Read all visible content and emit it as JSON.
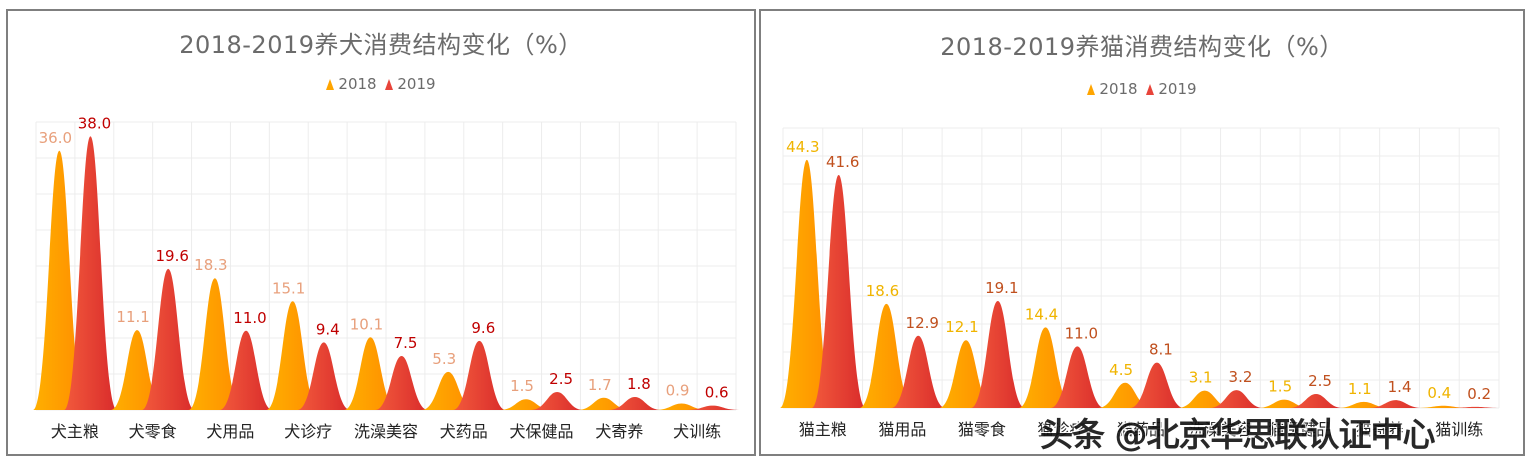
{
  "chart_data": [
    {
      "type": "bar",
      "title": "2018-2019养犬消费结构变化（%）",
      "xlabel": "",
      "ylabel": "",
      "ylim": [
        0,
        40
      ],
      "grid": true,
      "legend_position": "top",
      "categories": [
        "犬主粮",
        "犬零食",
        "犬用品",
        "犬诊疗",
        "洗澡美容",
        "犬药品",
        "犬保健品",
        "犬寄养",
        "犬训练"
      ],
      "series": [
        {
          "name": "2018",
          "values": [
            36.0,
            11.1,
            18.3,
            15.1,
            10.1,
            5.3,
            1.5,
            1.7,
            0.9
          ],
          "color": "#ffa500",
          "label_color": "#e8a07c"
        },
        {
          "name": "2019",
          "values": [
            38.0,
            19.6,
            11.0,
            9.4,
            7.5,
            9.6,
            2.5,
            1.8,
            0.6
          ],
          "color": "#e8443a",
          "label_color": "#c00000"
        }
      ]
    },
    {
      "type": "bar",
      "title": "2018-2019养猫消费结构变化（%）",
      "xlabel": "",
      "ylabel": "",
      "ylim": [
        0,
        50
      ],
      "grid": true,
      "legend_position": "top",
      "categories": [
        "猫主粮",
        "猫用品",
        "猫零食",
        "猫诊疗",
        "猫药品",
        "洗澡美容",
        "猫保健品",
        "猫寄养",
        "猫训练"
      ],
      "series": [
        {
          "name": "2018",
          "values": [
            44.3,
            18.6,
            12.1,
            14.4,
            4.5,
            3.1,
            1.5,
            1.1,
            0.4
          ],
          "color": "#ffa500",
          "label_color": "#f0b400"
        },
        {
          "name": "2019",
          "values": [
            41.6,
            12.9,
            19.1,
            11.0,
            8.1,
            3.2,
            2.5,
            1.4,
            0.2
          ],
          "color": "#e8443a",
          "label_color": "#c0501e"
        }
      ]
    }
  ],
  "panels": {
    "left": {
      "title": "2018-2019养犬消费结构变化（%）",
      "legend": [
        "2018",
        "2019"
      ]
    },
    "right": {
      "title": "2018-2019养猫消费结构变化（%）",
      "legend": [
        "2018",
        "2019"
      ]
    }
  },
  "colors": {
    "series_2018": "#ffa500",
    "series_2019": "#e8443a",
    "grid": "#ececec",
    "frame": "#7f7f7f",
    "title": "#6b6b6b"
  },
  "watermark": "头条 @北京华思联认证中心"
}
